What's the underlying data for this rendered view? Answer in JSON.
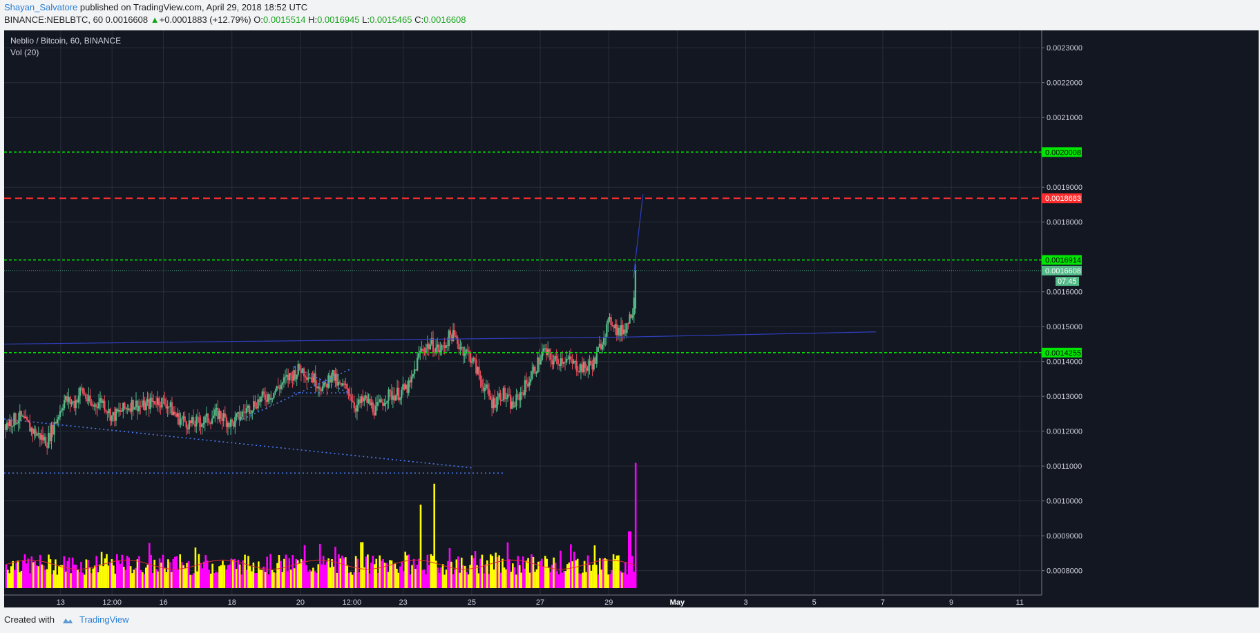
{
  "header": {
    "author": "Shayan_Salvatore",
    "published_text": "published on TradingView.com, April 29, 2018 18:52 UTC",
    "symbol_line": "BINANCE:NEBLBTC, 60",
    "last": "0.0016608",
    "change": "+0.0001883 (+12.79%)",
    "o_label": "O:",
    "o": "0.0015514",
    "h_label": "H:",
    "h": "0.0016945",
    "l_label": "L:",
    "l": "0.0015465",
    "c_label": "C:",
    "c": "0.0016608"
  },
  "overlay": {
    "title": "Neblio / Bitcoin, 60, BINANCE",
    "volume_label": "Vol (20)"
  },
  "footer": {
    "created_with": "Created with",
    "brand": "TradingView"
  },
  "colors": {
    "background": "#131722",
    "grid": "#2a2e39",
    "up_candle": "#53b987",
    "down_candle": "#eb4d5c",
    "volume_up": "#ffff00",
    "volume_down": "#ff00ff",
    "support_line": "#00e600",
    "resistance_line": "#ff2d2d",
    "trend_line": "#4a7cf5",
    "volume_ma": "#e03030"
  },
  "chart_data": {
    "type": "candlestick",
    "title": "Neblio / Bitcoin, 60, BINANCE",
    "ylim": [
      0.00073,
      0.00235
    ],
    "y_ticks": [
      "0.0023000",
      "0.0022000",
      "0.0021000",
      "0.0019000",
      "0.0018000",
      "0.0016000",
      "0.0015000",
      "0.0014000",
      "0.0013000",
      "0.0012000",
      "0.0011000",
      "0.0010000",
      "0.0009000",
      "0.0008000"
    ],
    "x_ticks": [
      {
        "label": "13",
        "day": 13
      },
      {
        "label": "12:00",
        "day": 14.5
      },
      {
        "label": "16",
        "day": 16
      },
      {
        "label": "18",
        "day": 18
      },
      {
        "label": "20",
        "day": 20
      },
      {
        "label": "12:00",
        "day": 21.5
      },
      {
        "label": "23",
        "day": 23
      },
      {
        "label": "25",
        "day": 25
      },
      {
        "label": "27",
        "day": 27
      },
      {
        "label": "29",
        "day": 29
      },
      {
        "label": "May",
        "day": 31
      },
      {
        "label": "3",
        "day": 33
      },
      {
        "label": "5",
        "day": 35
      },
      {
        "label": "7",
        "day": 37
      },
      {
        "label": "9",
        "day": 39
      },
      {
        "label": "11",
        "day": 41
      }
    ],
    "x_range_days": [
      11.35,
      41.6
    ],
    "price_levels": [
      {
        "price": 0.0020008,
        "label": "0.0020008",
        "kind": "support",
        "style": "dashed"
      },
      {
        "price": 0.0018683,
        "label": "0.0018683",
        "kind": "resistance",
        "style": "dashed"
      },
      {
        "price": 0.0016914,
        "label": "0.0016914",
        "kind": "support",
        "style": "dashed"
      },
      {
        "price": 0.0014255,
        "label": "0.0014255",
        "kind": "support",
        "style": "dashed"
      }
    ],
    "last_price": {
      "price": 0.0016608,
      "label": "0.0016608",
      "countdown": "07:45"
    },
    "trend_lines": [
      {
        "style": "dotted",
        "points": [
          [
            11.35,
            0.001235
          ],
          [
            25.0,
            0.001095
          ]
        ]
      },
      {
        "style": "dotted",
        "points": [
          [
            11.35,
            0.00108
          ],
          [
            25.98,
            0.00108
          ]
        ]
      },
      {
        "style": "dotted",
        "points": [
          [
            18.1,
            0.001225
          ],
          [
            21.5,
            0.00138
          ]
        ]
      },
      {
        "style": "dotted",
        "points": [
          [
            19.8,
            0.001385
          ],
          [
            21.4,
            0.00131
          ]
        ]
      },
      {
        "style": "dotted",
        "points": [
          [
            19.8,
            0.00131
          ],
          [
            21.4,
            0.00131
          ]
        ]
      },
      {
        "style": "solid",
        "points": [
          [
            11.35,
            0.00145
          ],
          [
            29.4,
            0.00147
          ],
          [
            36.8,
            0.001485
          ]
        ]
      },
      {
        "style": "solid",
        "points": [
          [
            29.72,
            0.00164
          ],
          [
            30.0,
            0.00188
          ]
        ]
      }
    ],
    "price_path": [
      [
        11.35,
        0.00122
      ],
      [
        11.8,
        0.00124
      ],
      [
        12.2,
        0.0012
      ],
      [
        12.6,
        0.00117
      ],
      [
        12.9,
        0.00124
      ],
      [
        13.1,
        0.00129
      ],
      [
        13.4,
        0.00128
      ],
      [
        13.6,
        0.00132
      ],
      [
        13.9,
        0.00127
      ],
      [
        14.2,
        0.00129
      ],
      [
        14.5,
        0.00124
      ],
      [
        14.8,
        0.00126
      ],
      [
        15.1,
        0.00128
      ],
      [
        15.4,
        0.00127
      ],
      [
        15.8,
        0.00129
      ],
      [
        16.1,
        0.00128
      ],
      [
        16.4,
        0.00124
      ],
      [
        16.8,
        0.00122
      ],
      [
        17.2,
        0.00123
      ],
      [
        17.6,
        0.00125
      ],
      [
        18.0,
        0.00122
      ],
      [
        18.4,
        0.00126
      ],
      [
        18.8,
        0.00129
      ],
      [
        19.2,
        0.00131
      ],
      [
        19.6,
        0.00135
      ],
      [
        20.0,
        0.00138
      ],
      [
        20.4,
        0.00135
      ],
      [
        20.7,
        0.00132
      ],
      [
        20.9,
        0.00137
      ],
      [
        21.1,
        0.00133
      ],
      [
        21.4,
        0.00132
      ],
      [
        21.6,
        0.00127
      ],
      [
        21.9,
        0.00129
      ],
      [
        22.2,
        0.00126
      ],
      [
        22.5,
        0.0013
      ],
      [
        22.9,
        0.00131
      ],
      [
        23.2,
        0.00133
      ],
      [
        23.5,
        0.00143
      ],
      [
        23.8,
        0.00145
      ],
      [
        24.1,
        0.00143
      ],
      [
        24.4,
        0.00148
      ],
      [
        24.7,
        0.00144
      ],
      [
        25.0,
        0.00141
      ],
      [
        25.3,
        0.00134
      ],
      [
        25.6,
        0.00128
      ],
      [
        25.9,
        0.00131
      ],
      [
        26.2,
        0.00127
      ],
      [
        26.5,
        0.00132
      ],
      [
        26.8,
        0.00137
      ],
      [
        27.1,
        0.00143
      ],
      [
        27.4,
        0.0014
      ],
      [
        27.7,
        0.00141
      ],
      [
        28.0,
        0.00139
      ],
      [
        28.3,
        0.00138
      ],
      [
        28.6,
        0.0014
      ],
      [
        28.9,
        0.00149
      ],
      [
        29.1,
        0.00152
      ],
      [
        29.3,
        0.00148
      ],
      [
        29.5,
        0.0015
      ],
      [
        29.7,
        0.00155
      ],
      [
        29.78,
        0.0016608
      ]
    ],
    "volume": {
      "ylim_height_ratio": 0.25,
      "ma_label": "Vol (20)",
      "spikes": [
        {
          "day": 23.5,
          "value": 1.0
        },
        {
          "day": 23.9,
          "value": 1.25
        },
        {
          "day": 21.8,
          "value": 0.55
        },
        {
          "day": 29.6,
          "value": 0.68
        },
        {
          "day": 29.78,
          "value": 1.5
        }
      ]
    }
  }
}
